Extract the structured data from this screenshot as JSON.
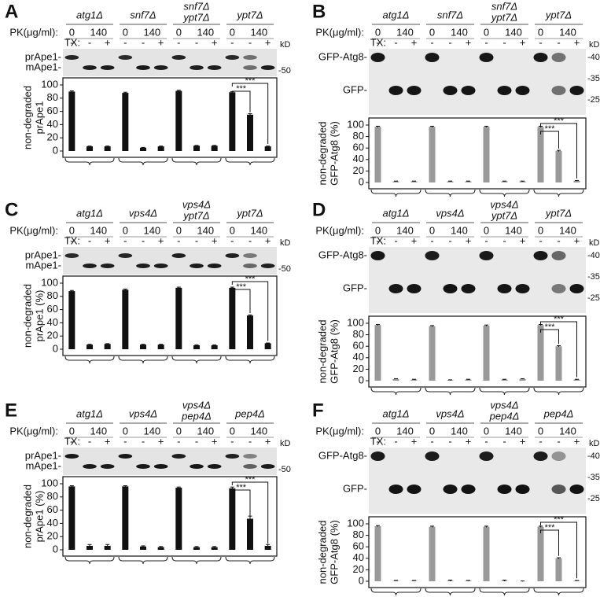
{
  "chart_data": [
    {
      "type": "bar",
      "panel": "A",
      "strains": [
        [
          "atg1Δ"
        ],
        [
          "snf7Δ"
        ],
        [
          "snf7Δ",
          "ypt7Δ"
        ],
        [
          "ypt7Δ"
        ]
      ],
      "pk_label": "PK(μg/ml):",
      "pk_values": [
        "0",
        "140"
      ],
      "tx_label": "TX:",
      "tx_values": [
        "-",
        "-",
        "+"
      ],
      "unit_label": "kD",
      "band_labels": [
        "prApe1-",
        "mApe1-"
      ],
      "markers": [
        "-50"
      ],
      "ylabel": [
        "non-degraded",
        "prApe1"
      ],
      "ylim": [
        0,
        100
      ],
      "yticks": [
        0,
        20,
        40,
        60,
        80,
        100
      ],
      "color": "#111111",
      "values": [
        90,
        7,
        7,
        88,
        5,
        7,
        91,
        8,
        8,
        89,
        55,
        7
      ],
      "errors": [
        1,
        0.5,
        0.5,
        1,
        0.5,
        0.5,
        1,
        0.5,
        0.5,
        1,
        1.5,
        0.5
      ],
      "significance": [
        "***",
        "***"
      ]
    },
    {
      "type": "bar",
      "panel": "B",
      "strains": [
        [
          "atg1Δ"
        ],
        [
          "snf7Δ"
        ],
        [
          "snf7Δ",
          "ypt7Δ"
        ],
        [
          "ypt7Δ"
        ]
      ],
      "pk_label": "PK(μg/ml):",
      "pk_values": [
        "0",
        "140"
      ],
      "tx_label": "TX:",
      "tx_values": [
        "-",
        "-",
        "+"
      ],
      "unit_label": "kD",
      "band_labels": [
        "GFP-Atg8-",
        "GFP-"
      ],
      "markers": [
        "-40",
        "-35",
        "-25"
      ],
      "ylabel": [
        "non-degraded",
        "GFP-Atg8 (%)"
      ],
      "ylim": [
        0,
        100
      ],
      "yticks": [
        0,
        20,
        40,
        60,
        80,
        100
      ],
      "color": "#999999",
      "values": [
        97,
        2,
        2,
        97,
        2,
        2,
        97,
        2,
        2,
        97,
        55,
        3
      ],
      "errors": [
        1,
        0.5,
        0.5,
        1,
        0.5,
        0.5,
        1,
        0.5,
        0.5,
        1,
        1,
        0.5
      ],
      "significance": [
        "***",
        "***"
      ]
    },
    {
      "type": "bar",
      "panel": "C",
      "strains": [
        [
          "atg1Δ"
        ],
        [
          "vps4Δ"
        ],
        [
          "vps4Δ",
          "ypt7Δ"
        ],
        [
          "ypt7Δ"
        ]
      ],
      "pk_label": "PK(μg/ml):",
      "pk_values": [
        "0",
        "140"
      ],
      "tx_label": "TX:",
      "tx_values": [
        "-",
        "-",
        "+"
      ],
      "unit_label": "kD",
      "band_labels": [
        "prApe1-",
        "mApe1-"
      ],
      "markers": [
        "-50"
      ],
      "ylabel": [
        "non-degraded",
        "prApe1 (%)"
      ],
      "ylim": [
        0,
        100
      ],
      "yticks": [
        0,
        20,
        40,
        60,
        80,
        100
      ],
      "color": "#111111",
      "values": [
        88,
        7,
        8,
        90,
        7,
        7,
        93,
        6,
        6,
        93,
        51,
        9
      ],
      "errors": [
        1,
        0.5,
        0.5,
        1,
        0.5,
        0.5,
        1,
        0.5,
        0.5,
        1,
        1,
        0.5
      ],
      "significance": [
        "***",
        "***"
      ]
    },
    {
      "type": "bar",
      "panel": "D",
      "strains": [
        [
          "atg1Δ"
        ],
        [
          "vps4Δ"
        ],
        [
          "vps4Δ",
          "ypt7Δ"
        ],
        [
          "ypt7Δ"
        ]
      ],
      "pk_label": "PK(μg/ml):",
      "pk_values": [
        "0",
        "140"
      ],
      "tx_label": "TX:",
      "tx_values": [
        "-",
        "-",
        "+"
      ],
      "unit_label": "kD",
      "band_labels": [
        "GFP-Atg8-",
        "GFP-"
      ],
      "markers": [
        "-40",
        "-35",
        "-25"
      ],
      "ylabel": [
        "non-degraded",
        "GFP-Atg8 (%)"
      ],
      "ylim": [
        0,
        100
      ],
      "yticks": [
        0,
        20,
        40,
        60,
        80,
        100
      ],
      "color": "#999999",
      "values": [
        97,
        3,
        2,
        95,
        1,
        2,
        96,
        2,
        3,
        97,
        60,
        2
      ],
      "errors": [
        1,
        0.5,
        0.5,
        1,
        0.5,
        0.5,
        1,
        0.5,
        0.5,
        1,
        1,
        0.5
      ],
      "significance": [
        "***",
        "***"
      ]
    },
    {
      "type": "bar",
      "panel": "E",
      "strains": [
        [
          "atg1Δ"
        ],
        [
          "vps4Δ"
        ],
        [
          "vps4Δ",
          "pep4Δ"
        ],
        [
          "pep4Δ"
        ]
      ],
      "pk_label": "PK(μg/ml):",
      "pk_values": [
        "0",
        "140"
      ],
      "tx_label": "TX:",
      "tx_values": [
        "-",
        "-",
        "+"
      ],
      "unit_label": "kD",
      "band_labels": [
        "prApe1-",
        "mApe1-"
      ],
      "markers": [
        "-50"
      ],
      "ylabel": [
        "non-degraded",
        "prApe1 (%)"
      ],
      "ylim": [
        0,
        100
      ],
      "yticks": [
        0,
        20,
        40,
        60,
        80,
        100
      ],
      "color": "#111111",
      "values": [
        96,
        6,
        6,
        96,
        5,
        4,
        94,
        4,
        4,
        93,
        47,
        6
      ],
      "errors": [
        1,
        2,
        2,
        1,
        1,
        1,
        1,
        1,
        1,
        2,
        4,
        2
      ],
      "significance": [
        "***",
        "***"
      ]
    },
    {
      "type": "bar",
      "panel": "F",
      "strains": [
        [
          "atg1Δ"
        ],
        [
          "vps4Δ"
        ],
        [
          "vps4Δ",
          "pep4Δ"
        ],
        [
          "pep4Δ"
        ]
      ],
      "pk_label": "PK(μg/ml):",
      "pk_values": [
        "0",
        "140"
      ],
      "tx_label": "TX:",
      "tx_values": [
        "-",
        "-",
        "+"
      ],
      "unit_label": "kD",
      "band_labels": [
        "GFP-Atg8-",
        "GFP-"
      ],
      "markers": [
        "-40",
        "-35",
        "-25"
      ],
      "ylabel": [
        "non-degraded",
        "GFP-Atg8 (%)"
      ],
      "ylim": [
        0,
        100
      ],
      "yticks": [
        0,
        20,
        40,
        60,
        80,
        100
      ],
      "color": "#999999",
      "values": [
        96,
        1,
        1,
        95,
        1,
        1,
        95,
        1,
        0,
        95,
        40,
        1
      ],
      "errors": [
        1,
        0.5,
        0.5,
        1,
        1,
        0.5,
        1,
        1,
        0.5,
        1,
        1,
        0.5
      ],
      "significance": [
        "***",
        "***"
      ]
    }
  ]
}
